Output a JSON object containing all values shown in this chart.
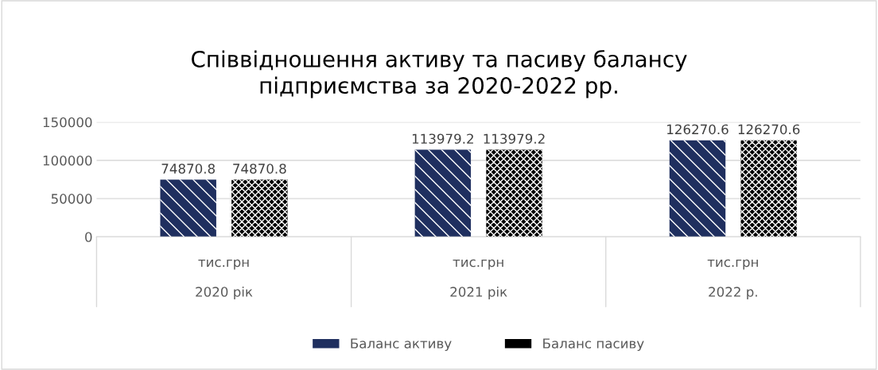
{
  "chart_data": {
    "type": "bar",
    "title": "Співвідношення активу та пасиву балансу\nпідприємства за 2020-2022 рр.",
    "categories": [
      "тис.грн",
      "тис.грн",
      "тис.грн"
    ],
    "annotations": [
      "2020 рік",
      "2021 рік",
      "2022 р."
    ],
    "series": [
      {
        "name": "Баланс активу",
        "color": "#1f2f5f",
        "values": [
          74870.8,
          113979.2,
          126270.6
        ]
      },
      {
        "name": "Баланс пасиву",
        "color": "#000000",
        "values": [
          74870.8,
          113979.2,
          126270.6
        ]
      }
    ],
    "ylim": [
      0,
      150000
    ],
    "yticks": [
      0,
      50000,
      100000,
      150000
    ],
    "grid": "y",
    "legend": "bottom",
    "data_labels": true
  }
}
